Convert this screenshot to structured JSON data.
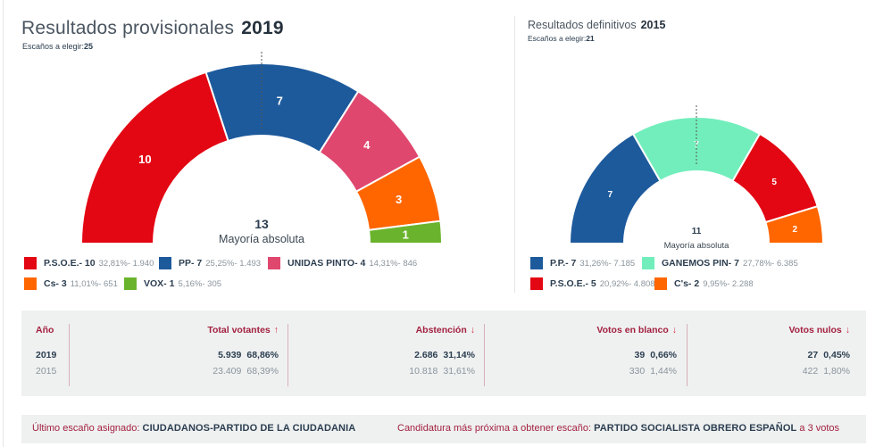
{
  "current": {
    "title": "Resultados provisionales",
    "year": "2019",
    "seats_label": "Escaños a elegir:",
    "seats_total": "25",
    "majority_number": "13",
    "majority_label": "Mayoría absoluta"
  },
  "previous": {
    "title": "Resultados definitivos",
    "year": "2015",
    "seats_label": "Escaños a elegir:",
    "seats_total": "21",
    "majority_number": "11",
    "majority_label": "Mayoría absoluta"
  },
  "chart_data": [
    {
      "type": "pie",
      "subtype": "parliament-semicircle",
      "title": "Resultados provisionales 2019",
      "total_seats": 25,
      "majority": 13,
      "categories": [
        "P.S.O.E.",
        "PP",
        "UNIDAS PINTO",
        "Cs",
        "VOX"
      ],
      "values": [
        10,
        7,
        4,
        3,
        1
      ],
      "colors": [
        "#e30613",
        "#1d5a9c",
        "#e0476f",
        "#ff6600",
        "#6ab42d"
      ],
      "legend": [
        {
          "name": "P.S.O.E.- 10",
          "stats": "32,81%- 1.940",
          "color": "#e30613"
        },
        {
          "name": "PP- 7",
          "stats": "25,25%- 1.493",
          "color": "#1d5a9c"
        },
        {
          "name": "UNIDAS PINTO- 4",
          "stats": "14,31%- 846",
          "color": "#e0476f"
        },
        {
          "name": "Cs- 3",
          "stats": "11,01%- 651",
          "color": "#ff6600"
        },
        {
          "name": "VOX- 1",
          "stats": "5,16%- 305",
          "color": "#6ab42d"
        }
      ],
      "legend_position": "bottom"
    },
    {
      "type": "pie",
      "subtype": "parliament-semicircle",
      "title": "Resultados definitivos 2015",
      "total_seats": 21,
      "majority": 11,
      "categories": [
        "P.P.",
        "GANEMOS PIN",
        "P.S.O.E.",
        "C's"
      ],
      "values": [
        7,
        7,
        5,
        2
      ],
      "colors": [
        "#1d5a9c",
        "#72eebc",
        "#e30613",
        "#ff6600"
      ],
      "legend": [
        {
          "name": "P.P.- 7",
          "stats": "31,26%- 7.185",
          "color": "#1d5a9c"
        },
        {
          "name": "GANEMOS PIN- 7",
          "stats": "27,78%- 6.385",
          "color": "#72eebc"
        },
        {
          "name": "P.S.O.E.- 5",
          "stats": "20,92%- 4.808",
          "color": "#e30613"
        },
        {
          "name": "C's- 2",
          "stats": "9,95%- 2.288",
          "color": "#ff6600"
        }
      ],
      "legend_position": "bottom"
    }
  ],
  "stats": {
    "headers": {
      "year": "Año",
      "total": "Total votantes",
      "abstention": "Abstención",
      "blank": "Votos en blanco",
      "null": "Votos nulos"
    },
    "arrows": {
      "up": "↑",
      "down": "↓"
    },
    "rows": [
      {
        "year": "2019",
        "total": "5.939",
        "total_pct": "68,86%",
        "abstention": "2.686",
        "abstention_pct": "31,14%",
        "blank": "39",
        "blank_pct": "0,66%",
        "null": "27",
        "null_pct": "0,45%"
      },
      {
        "year": "2015",
        "total": "23.409",
        "total_pct": "68,39%",
        "abstention": "10.818",
        "abstention_pct": "31,61%",
        "blank": "330",
        "blank_pct": "1,44%",
        "null": "422",
        "null_pct": "1,80%"
      }
    ]
  },
  "footer": {
    "last_seat_label": "Último escaño asignado:",
    "last_seat_value": "CIUDADANOS-PARTIDO DE LA CIUDADANIA",
    "next_label": "Candidatura más próxima a obtener escaño:",
    "next_value": "PARTIDO SOCIALISTA OBRERO ESPAÑOL",
    "next_suffix": "a 3 votos"
  }
}
